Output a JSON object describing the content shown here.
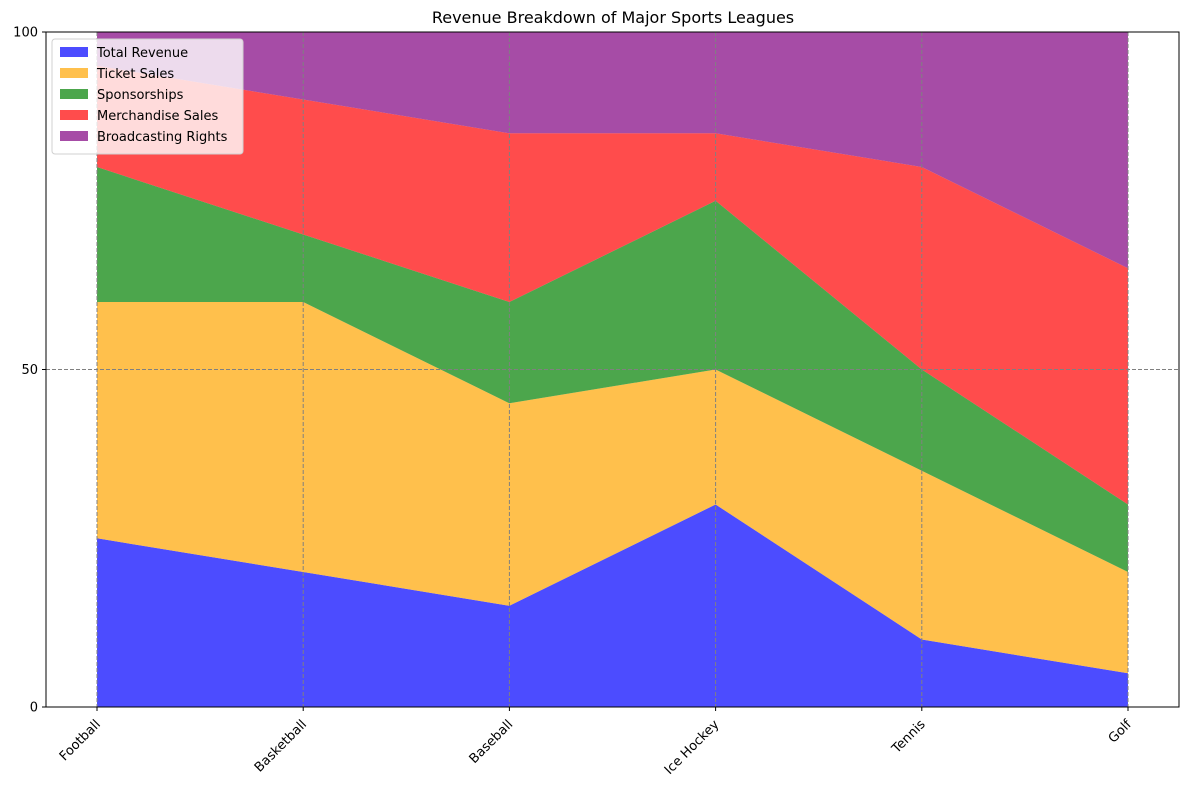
{
  "chart_data": {
    "type": "area",
    "stacked": true,
    "title": "Revenue Breakdown of Major Sports Leagues",
    "xlabel": "",
    "ylabel": "",
    "categories": [
      "Football",
      "Basketball",
      "Baseball",
      "Ice Hockey",
      "Tennis",
      "Golf"
    ],
    "ylim": [
      0,
      100
    ],
    "yticks": [
      0,
      50,
      100
    ],
    "grid": true,
    "legend_position": "upper-left",
    "series": [
      {
        "name": "Total Revenue",
        "color": "#0000ff",
        "values": [
          25,
          20,
          15,
          30,
          10,
          5
        ]
      },
      {
        "name": "Ticket Sales",
        "color": "#ffa500",
        "values": [
          35,
          40,
          30,
          20,
          25,
          15
        ]
      },
      {
        "name": "Sponsorships",
        "color": "#008000",
        "values": [
          20,
          10,
          15,
          25,
          15,
          10
        ]
      },
      {
        "name": "Merchandise Sales",
        "color": "#ff0000",
        "values": [
          15,
          20,
          25,
          10,
          30,
          35
        ]
      },
      {
        "name": "Broadcasting Rights",
        "color": "#800080",
        "values": [
          5,
          10,
          15,
          15,
          20,
          35
        ]
      }
    ]
  }
}
